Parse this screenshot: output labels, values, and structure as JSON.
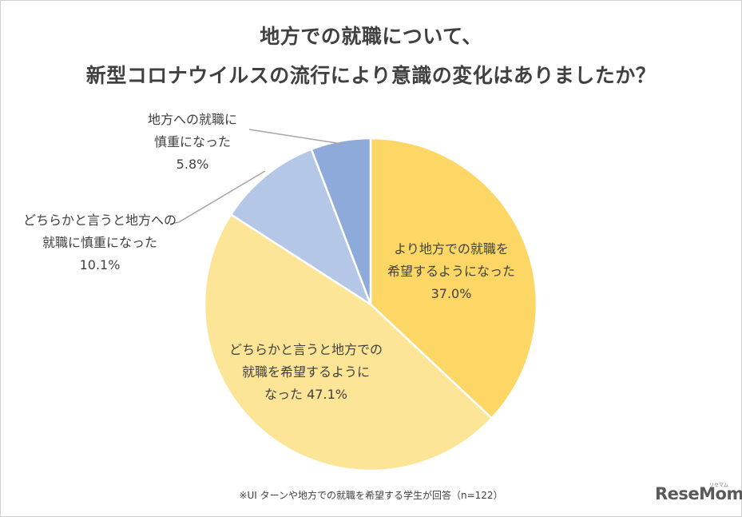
{
  "title_line1": "地方での就職について、",
  "title_line2": "新型コロナウイルスの流行により意識の変化はありましたか？",
  "footnote": "※UI ターンや地方での就職を希望する学生が回答（n=122）",
  "brand": "ReseMom",
  "brand_kana": "リセマム",
  "chart_data": {
    "type": "pie",
    "start_angle_deg": 0,
    "direction": "clockwise",
    "slices": [
      {
        "label_lines": [
          "より地方での就職を",
          "希望するようになった",
          "37.0%"
        ],
        "value": 37.0,
        "color": "#fdd766"
      },
      {
        "label_lines": [
          "どちらかと言うと地方での",
          "就職を希望するように",
          "なった 47.1%"
        ],
        "value": 47.1,
        "color": "#fde598"
      },
      {
        "label_lines": [
          "どちらかと言うと地方への",
          "就職に慎重になった",
          "10.1%"
        ],
        "value": 10.1,
        "color": "#b4c7e7"
      },
      {
        "label_lines": [
          "地方への就職に",
          "慎重になった",
          "5.8%"
        ],
        "value": 5.8,
        "color": "#8eaadb"
      }
    ]
  }
}
